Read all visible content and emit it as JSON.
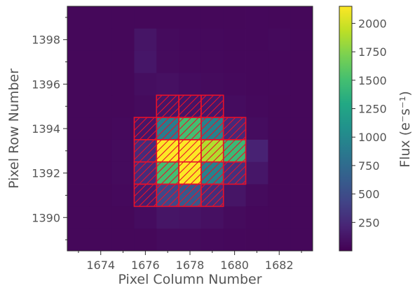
{
  "chart_data": {
    "type": "heatmap",
    "xlabel": "Pixel Column Number",
    "ylabel": "Pixel Row Number",
    "colorbar_label": "Flux (e⁻s⁻¹)",
    "xlim": [
      1672.5,
      1683.5
    ],
    "ylim": [
      1388.5,
      1399.5
    ],
    "xticks": [
      1674,
      1676,
      1678,
      1680,
      1682
    ],
    "yticks": [
      1390,
      1392,
      1394,
      1396,
      1398
    ],
    "colorbar_range": [
      0,
      2150
    ],
    "colorbar_ticks": [
      250,
      500,
      750,
      1000,
      1250,
      1500,
      1750,
      2000
    ],
    "colormap": "viridis",
    "columns": [
      1673,
      1674,
      1675,
      1676,
      1677,
      1678,
      1679,
      1680,
      1681,
      1682,
      1683
    ],
    "rows": [
      1399,
      1398,
      1397,
      1396,
      1395,
      1394,
      1393,
      1392,
      1391,
      1390,
      1389
    ],
    "flux_grid": [
      [
        40,
        40,
        40,
        40,
        40,
        40,
        40,
        40,
        45,
        40,
        40
      ],
      [
        40,
        40,
        40,
        120,
        60,
        50,
        50,
        45,
        45,
        55,
        45
      ],
      [
        40,
        40,
        40,
        130,
        60,
        50,
        50,
        45,
        45,
        45,
        40
      ],
      [
        40,
        40,
        40,
        80,
        90,
        70,
        60,
        50,
        45,
        45,
        40
      ],
      [
        40,
        40,
        40,
        60,
        120,
        110,
        130,
        70,
        50,
        40,
        40
      ],
      [
        40,
        40,
        50,
        130,
        900,
        1500,
        950,
        250,
        70,
        40,
        40
      ],
      [
        40,
        45,
        60,
        270,
        2150,
        2150,
        1900,
        1450,
        200,
        40,
        40
      ],
      [
        40,
        45,
        60,
        270,
        1500,
        2150,
        950,
        300,
        130,
        40,
        40
      ],
      [
        40,
        40,
        50,
        160,
        450,
        600,
        280,
        120,
        60,
        40,
        40
      ],
      [
        40,
        40,
        40,
        70,
        120,
        110,
        90,
        60,
        45,
        40,
        40
      ],
      [
        40,
        40,
        40,
        40,
        60,
        60,
        50,
        45,
        40,
        40,
        40
      ]
    ],
    "aperture_mask": [
      [
        1677,
        1395
      ],
      [
        1678,
        1395
      ],
      [
        1679,
        1395
      ],
      [
        1676,
        1394
      ],
      [
        1677,
        1394
      ],
      [
        1678,
        1394
      ],
      [
        1679,
        1394
      ],
      [
        1680,
        1394
      ],
      [
        1676,
        1393
      ],
      [
        1677,
        1393
      ],
      [
        1678,
        1393
      ],
      [
        1679,
        1393
      ],
      [
        1680,
        1393
      ],
      [
        1676,
        1392
      ],
      [
        1677,
        1392
      ],
      [
        1678,
        1392
      ],
      [
        1679,
        1392
      ],
      [
        1680,
        1392
      ],
      [
        1676,
        1391
      ],
      [
        1677,
        1391
      ],
      [
        1678,
        1391
      ],
      [
        1679,
        1391
      ]
    ],
    "aperture_color": "#e8102a",
    "grid": false
  }
}
